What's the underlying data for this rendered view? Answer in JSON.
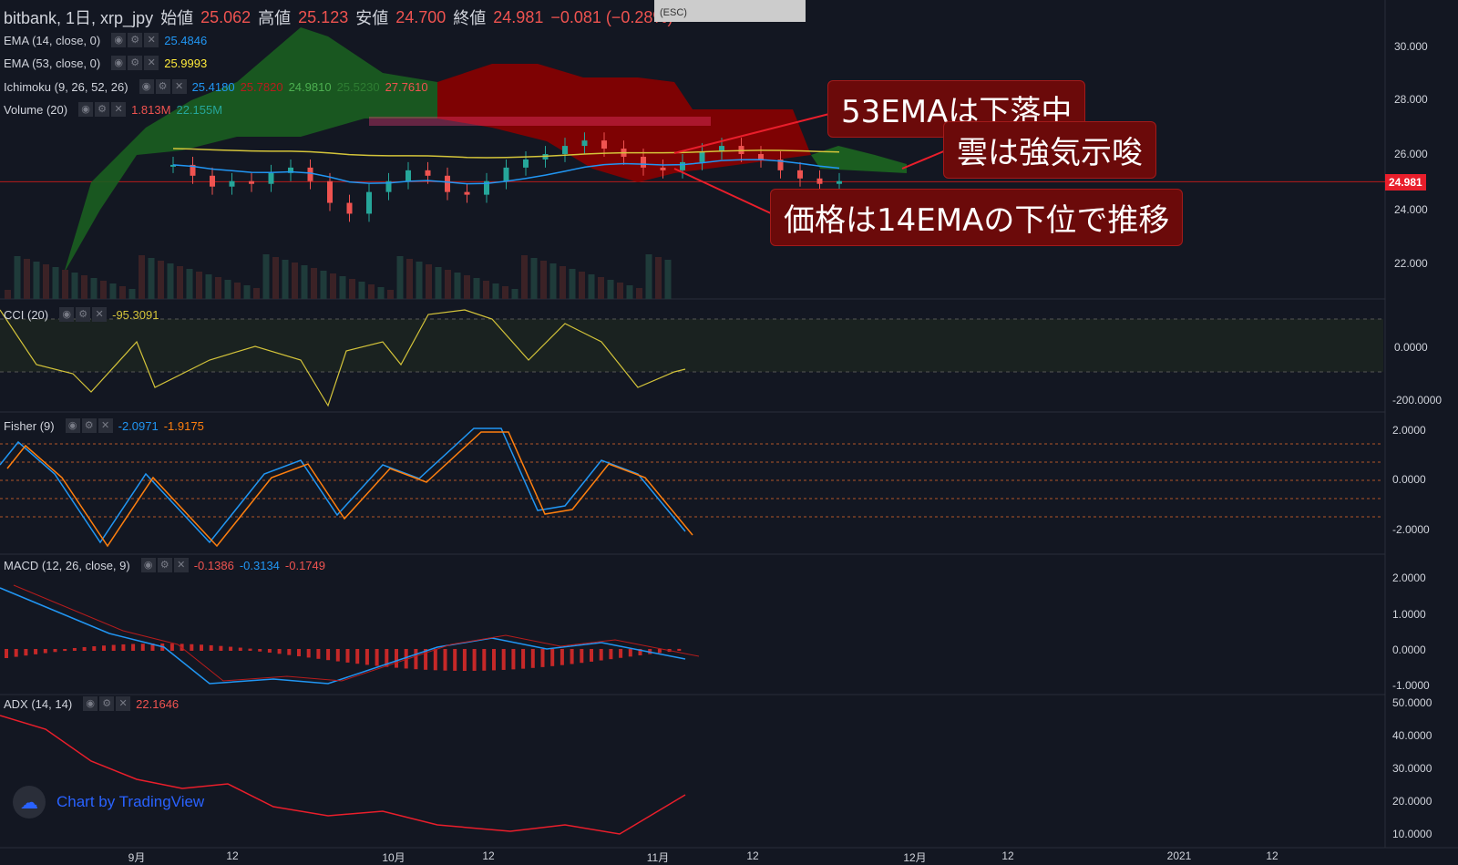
{
  "title_bar": {
    "exchange": "bitbank, 1日, xrp_jpy",
    "open_label": "始値",
    "open": "25.062",
    "high_label": "高値",
    "high": "25.123",
    "low_label": "安値",
    "low": "24.700",
    "close_label": "終値",
    "close": "24.981",
    "change": "−0.081 (−0.28%)",
    "esc": "(ESC)"
  },
  "indicators": {
    "ema14": {
      "name": "EMA (14, close, 0)",
      "value": "25.4846",
      "color": "#2196f3"
    },
    "ema53": {
      "name": "EMA (53, close, 0)",
      "value": "25.9993",
      "color": "#ffeb3b"
    },
    "ichimoku": {
      "name": "Ichimoku (9, 26, 52, 26)",
      "v1": "25.4180",
      "v2": "25.7820",
      "v3": "24.9810",
      "v4": "25.5230",
      "v5": "27.7610"
    },
    "volume": {
      "name": "Volume (20)",
      "v1": "1.813M",
      "v2": "22.155M"
    },
    "cci": {
      "name": "CCI (20)",
      "value": "-95.3091"
    },
    "fisher": {
      "name": "Fisher (9)",
      "v1": "-2.0971",
      "v2": "-1.9175"
    },
    "macd": {
      "name": "MACD (12, 26, close, 9)",
      "v1": "-0.1386",
      "v2": "-0.3134",
      "v3": "-0.1749"
    },
    "adx": {
      "name": "ADX (14, 14)",
      "value": "22.1646"
    }
  },
  "callouts": {
    "c1": "53EMAは下落中",
    "c2": "雲は強気示唆",
    "c3": "価格は14EMAの下位で推移"
  },
  "price_tag": "24.981",
  "axes": {
    "price": [
      "30.000",
      "28.000",
      "26.000",
      "24.000",
      "22.000"
    ],
    "cci": [
      "0.0000",
      "-200.0000"
    ],
    "fisher": [
      "2.0000",
      "0.0000",
      "-2.0000"
    ],
    "macd": [
      "2.0000",
      "1.0000",
      "0.0000",
      "-1.0000"
    ],
    "adx": [
      "50.0000",
      "40.0000",
      "30.0000",
      "20.0000",
      "10.0000"
    ],
    "x": [
      "9月",
      "12",
      "10月",
      "12",
      "11月",
      "12",
      "12月",
      "12",
      "2021",
      "12"
    ]
  },
  "brand": "Chart by TradingView",
  "chart_data": {
    "type": "line",
    "title": "bitbank, 1日, xrp_jpy",
    "close_price": [
      25.6,
      25.2,
      24.8,
      25.0,
      24.9,
      25.3,
      25.5,
      25.0,
      24.2,
      23.8,
      24.6,
      25.0,
      25.4,
      25.2,
      24.6,
      24.5,
      25.0,
      25.5,
      25.8,
      26.0,
      26.3,
      26.5,
      26.2,
      25.9,
      25.5,
      25.4,
      25.7,
      26.1,
      26.3,
      26.0,
      25.8,
      25.4,
      25.1,
      24.9,
      25.0
    ],
    "ema14_last": 25.4846,
    "ema53_last": 25.9993,
    "cci_last": -95.3091,
    "fisher_last": [
      -2.0971,
      -1.9175
    ],
    "macd_last": [
      -0.1386,
      -0.3134,
      -0.1749
    ],
    "adx_last": 22.1646,
    "ylim_price": [
      21,
      31
    ]
  }
}
